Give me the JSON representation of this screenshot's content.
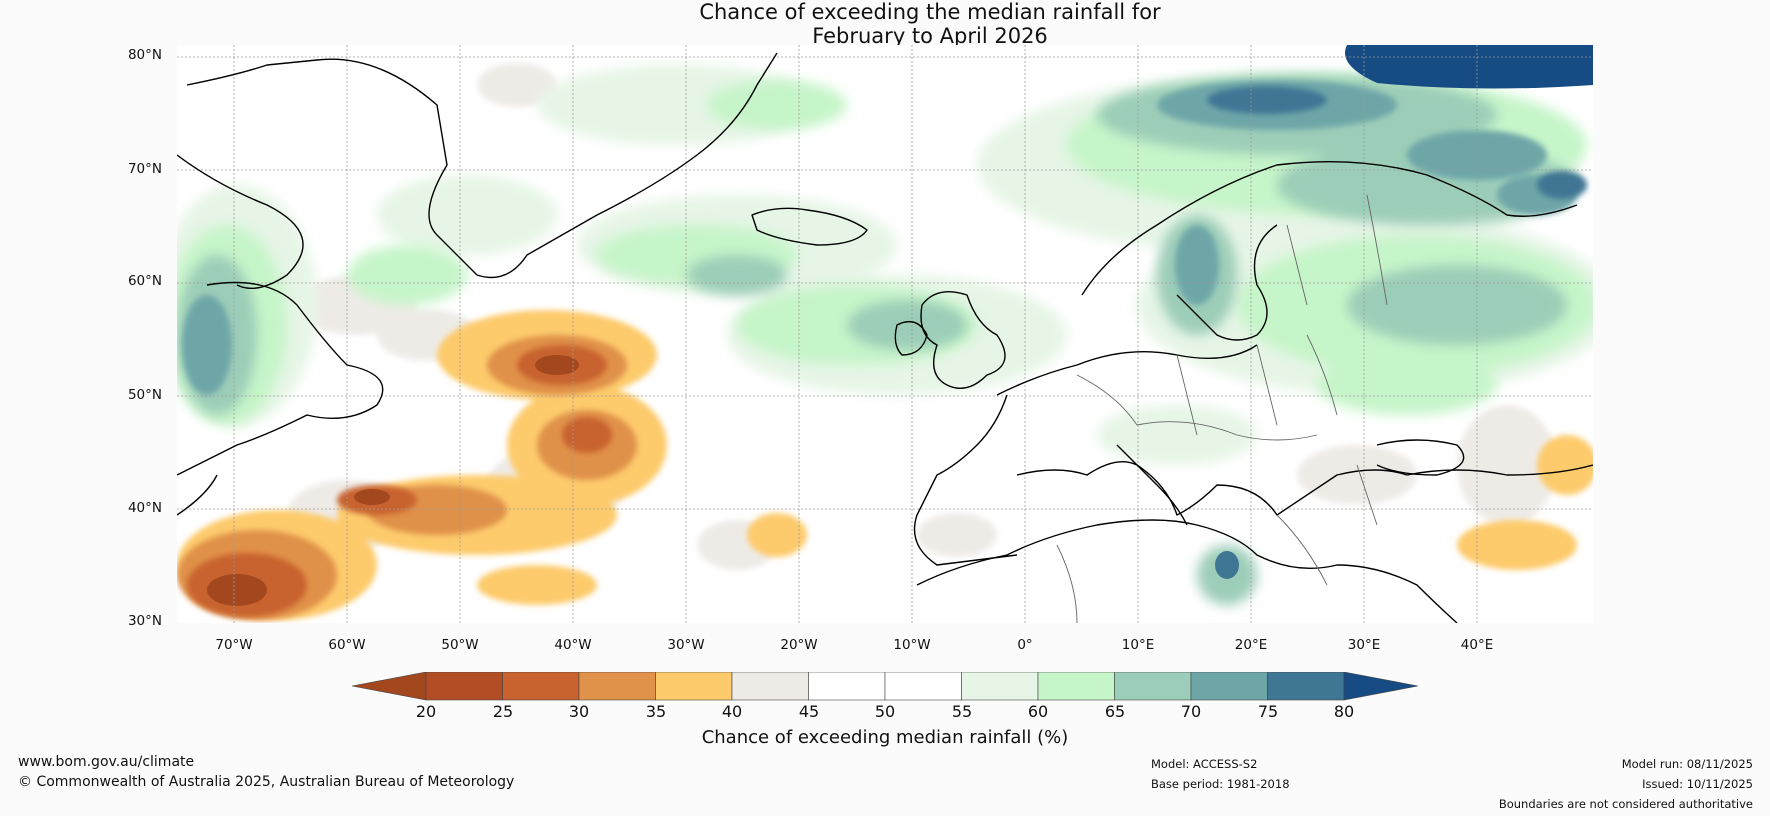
{
  "title": {
    "line1": "Chance of exceeding the median rainfall for",
    "line2": "February to April 2026"
  },
  "axes": {
    "lat_labels": [
      "80°N",
      "70°N",
      "60°N",
      "50°N",
      "40°N",
      "30°N"
    ],
    "lon_labels": [
      "70°W",
      "60°W",
      "50°W",
      "40°W",
      "30°W",
      "20°W",
      "10°W",
      "0°",
      "10°E",
      "20°E",
      "30°E",
      "40°E"
    ],
    "lat_range": [
      30,
      81
    ],
    "lon_range": [
      -75,
      50
    ]
  },
  "colorbar": {
    "ticks": [
      "20",
      "25",
      "30",
      "35",
      "40",
      "45",
      "50",
      "55",
      "60",
      "65",
      "70",
      "75",
      "80"
    ],
    "colors": [
      "#a3471f",
      "#b34d26",
      "#c8622e",
      "#e0914a",
      "#fdcb6c",
      "#eeeae6",
      "#ffffff",
      "#ffffff",
      "#e6f5e6",
      "#c6f5c9",
      "#9ccdb8",
      "#6ea6a8",
      "#3f7694",
      "#164b83"
    ],
    "label": "Chance of exceeding median rainfall (%)"
  },
  "footer": {
    "website": "www.bom.gov.au/climate",
    "copyright": "© Commonwealth of Australia 2025, Australian Bureau of Meteorology",
    "model": "Model: ACCESS-S2",
    "base_period": "Base period: 1981-2018",
    "model_run": "Model run: 08/11/2025",
    "issued": "Issued: 10/11/2025",
    "disclaimer": "Boundaries are not considered authoritative"
  }
}
